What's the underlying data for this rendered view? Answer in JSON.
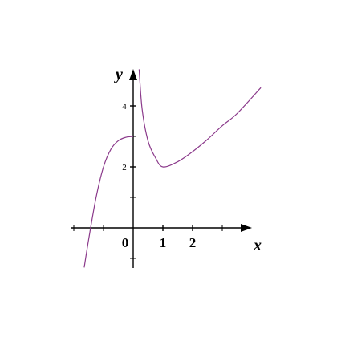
{
  "chart_data": {
    "type": "line",
    "title": "",
    "xlabel": "x",
    "ylabel": "y",
    "xlim": [
      -2.1,
      4.3
    ],
    "ylim": [
      -1.4,
      5.2
    ],
    "grid": false,
    "legend": "none",
    "x_ticks": [
      -2,
      -1,
      0,
      1,
      2,
      3
    ],
    "x_tick_labels": [
      {
        "value": 0,
        "label": "0"
      },
      {
        "value": 1,
        "label": "1"
      },
      {
        "value": 2,
        "label": "2"
      }
    ],
    "y_ticks": [
      -1,
      1,
      2,
      3,
      4
    ],
    "y_tick_labels": [
      {
        "value": 2,
        "label": "2"
      },
      {
        "value": 4,
        "label": "4"
      }
    ],
    "series": [
      {
        "branch": "left",
        "color": "#8b3a8b",
        "x": [
          -1.65,
          -1.5,
          -1.25,
          -1.0,
          -0.75,
          -0.5,
          -0.25,
          0.0
        ],
        "y": [
          -1.3,
          -0.38,
          1.0,
          2.0,
          2.58,
          2.86,
          2.97,
          3.0
        ]
      },
      {
        "branch": "right",
        "color": "#8b3a8b",
        "x": [
          0.2,
          0.3,
          0.5,
          0.75,
          1.0,
          1.5,
          2.0,
          2.5,
          3.0,
          3.5,
          4.3
        ],
        "y": [
          5.2,
          3.9,
          2.85,
          2.3,
          2.0,
          2.17,
          2.5,
          2.9,
          3.35,
          3.75,
          4.6
        ]
      }
    ]
  }
}
